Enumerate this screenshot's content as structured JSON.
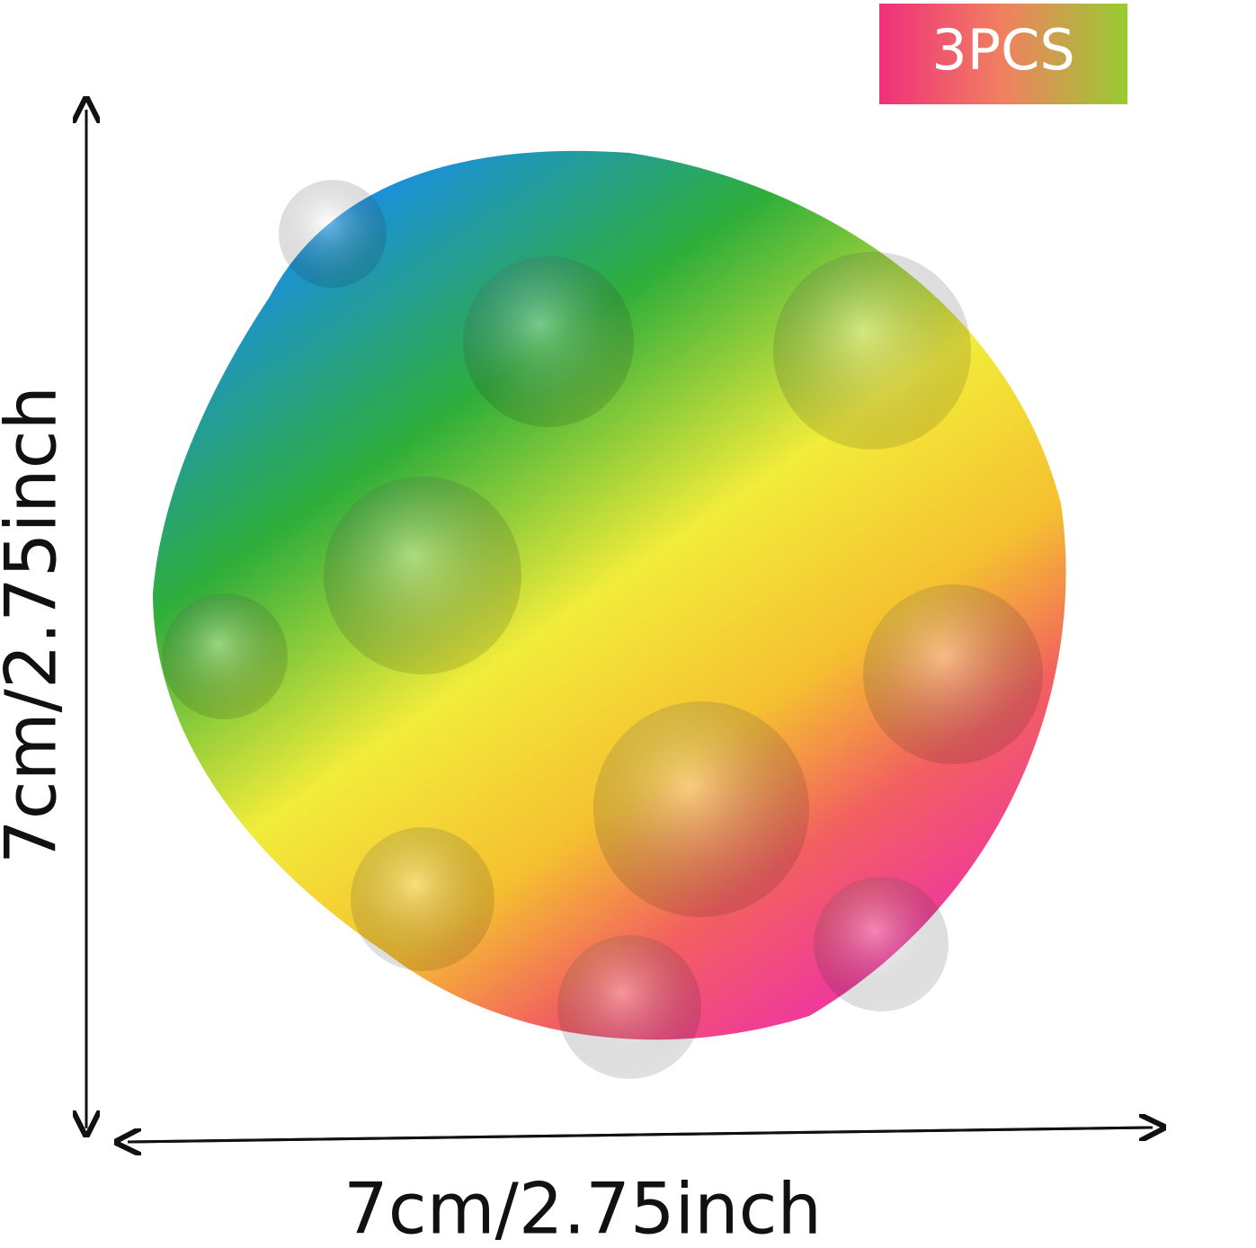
{
  "badge": "3PCS",
  "height_label": "7cm/2.75inch",
  "width_label": "7cm/2.75inch"
}
